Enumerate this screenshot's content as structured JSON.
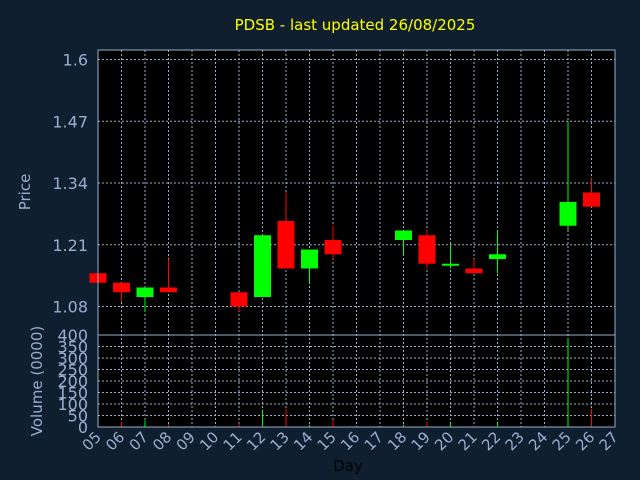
{
  "chart_data": {
    "type": "candlestick",
    "title": "PDSB - last updated 26/08/2025",
    "xlabel": "Day",
    "ylabel_price": "Price",
    "ylabel_volume": "Volume (0000)",
    "x_ticks": [
      "05",
      "06",
      "07",
      "08",
      "09",
      "10",
      "11",
      "12",
      "13",
      "14",
      "15",
      "16",
      "17",
      "18",
      "19",
      "20",
      "21",
      "22",
      "23",
      "24",
      "25",
      "26",
      "27"
    ],
    "price_ylim": [
      1.02,
      1.62
    ],
    "price_ticks": [
      1.08,
      1.21,
      1.34,
      1.47,
      1.6
    ],
    "price_tick_labels": [
      "1.08",
      "1.21",
      "1.34",
      "1.47",
      "1.6"
    ],
    "volume_ylim": [
      0,
      400
    ],
    "volume_ticks": [
      0,
      50,
      100,
      150,
      200,
      250,
      300,
      350,
      400
    ],
    "volume_tick_labels": [
      "0",
      "50",
      "100",
      "150",
      "200",
      "250",
      "300",
      "350",
      "400"
    ],
    "grid": true,
    "colors": {
      "background": "#0f1f30",
      "panel": "#000000",
      "title": "#ffff00",
      "axis_text": "#9aaed0",
      "grid": "#9ab0c8",
      "up": "#00ff00",
      "down": "#ff0000"
    },
    "candles": [
      {
        "day": "05",
        "open": 1.15,
        "high": 1.15,
        "low": 1.13,
        "close": 1.13
      },
      {
        "day": "06",
        "open": 1.13,
        "high": 1.13,
        "low": 1.09,
        "close": 1.11
      },
      {
        "day": "07",
        "open": 1.1,
        "high": 1.12,
        "low": 1.07,
        "close": 1.12
      },
      {
        "day": "08",
        "open": 1.12,
        "high": 1.18,
        "low": 1.11,
        "close": 1.11
      },
      {
        "day": "11",
        "open": 1.11,
        "high": 1.11,
        "low": 1.07,
        "close": 1.08
      },
      {
        "day": "12",
        "open": 1.1,
        "high": 1.23,
        "low": 1.1,
        "close": 1.23
      },
      {
        "day": "13",
        "open": 1.26,
        "high": 1.32,
        "low": 1.16,
        "close": 1.16
      },
      {
        "day": "14",
        "open": 1.16,
        "high": 1.2,
        "low": 1.13,
        "close": 1.2
      },
      {
        "day": "15",
        "open": 1.22,
        "high": 1.25,
        "low": 1.18,
        "close": 1.19
      },
      {
        "day": "18",
        "open": 1.22,
        "high": 1.24,
        "low": 1.19,
        "close": 1.24
      },
      {
        "day": "19",
        "open": 1.23,
        "high": 1.24,
        "low": 1.16,
        "close": 1.17
      },
      {
        "day": "20",
        "open": 1.17,
        "high": 1.21,
        "low": 1.16,
        "close": 1.17
      },
      {
        "day": "21",
        "open": 1.16,
        "high": 1.18,
        "low": 1.15,
        "close": 1.15
      },
      {
        "day": "22",
        "open": 1.18,
        "high": 1.24,
        "low": 1.15,
        "close": 1.19
      },
      {
        "day": "25",
        "open": 1.25,
        "high": 1.47,
        "low": 1.24,
        "close": 1.3
      },
      {
        "day": "26",
        "open": 1.32,
        "high": 1.35,
        "low": 1.29,
        "close": 1.29
      }
    ],
    "volumes": [
      {
        "day": "05",
        "value": 8,
        "color": "down"
      },
      {
        "day": "06",
        "value": 22,
        "color": "down"
      },
      {
        "day": "07",
        "value": 28,
        "color": "up"
      },
      {
        "day": "08",
        "value": 12,
        "color": "down"
      },
      {
        "day": "11",
        "value": 14,
        "color": "down"
      },
      {
        "day": "12",
        "value": 70,
        "color": "up"
      },
      {
        "day": "13",
        "value": 80,
        "color": "down"
      },
      {
        "day": "14",
        "value": 8,
        "color": "up"
      },
      {
        "day": "15",
        "value": 28,
        "color": "down"
      },
      {
        "day": "18",
        "value": 10,
        "color": "up"
      },
      {
        "day": "19",
        "value": 22,
        "color": "down"
      },
      {
        "day": "20",
        "value": 16,
        "color": "up"
      },
      {
        "day": "21",
        "value": 6,
        "color": "down"
      },
      {
        "day": "22",
        "value": 18,
        "color": "up"
      },
      {
        "day": "25",
        "value": 385,
        "color": "up"
      },
      {
        "day": "26",
        "value": 80,
        "color": "down"
      }
    ]
  }
}
